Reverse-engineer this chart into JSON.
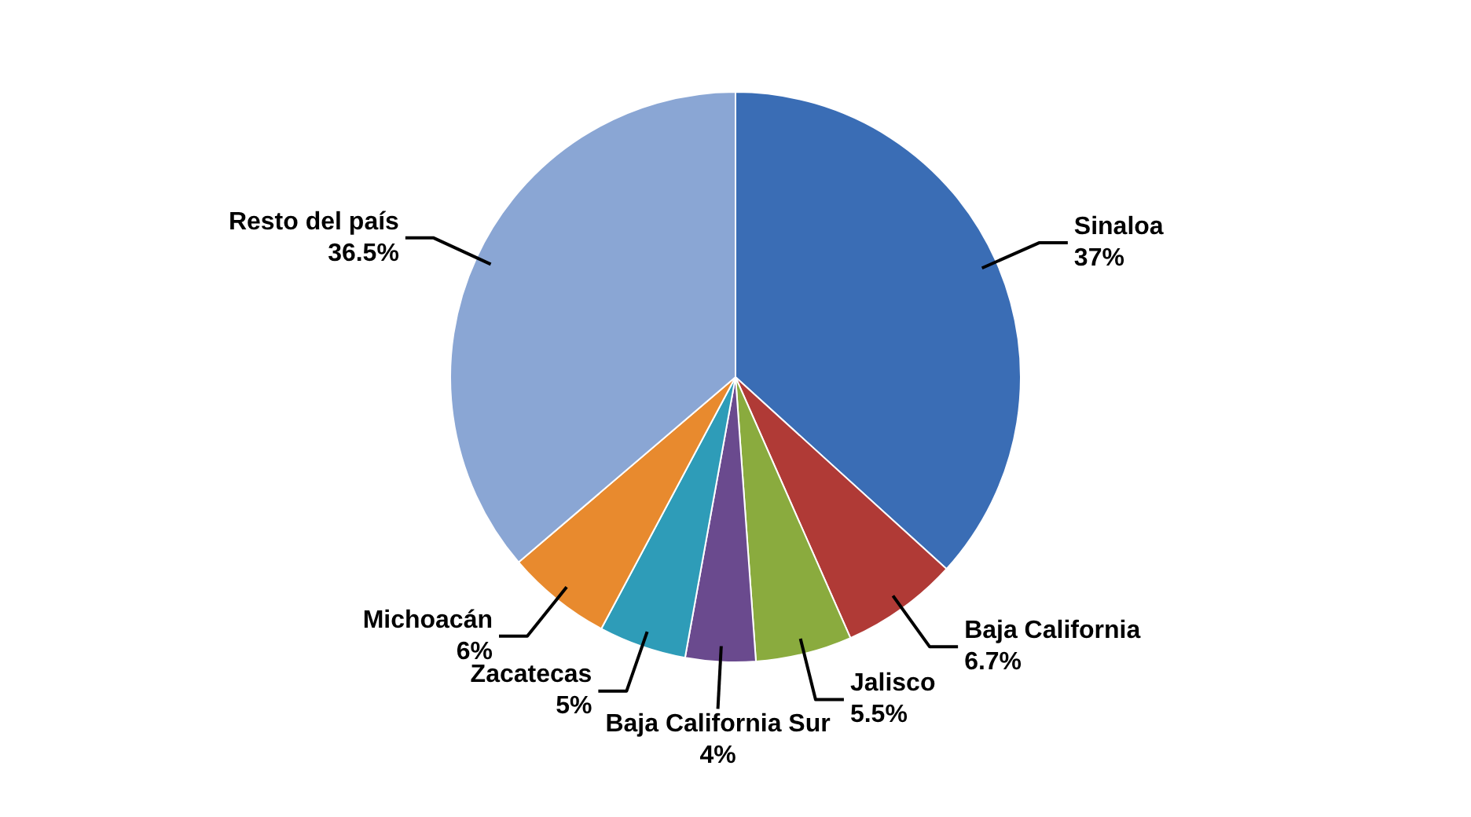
{
  "chart_data": {
    "type": "pie",
    "categories": [
      "Sinaloa",
      "Baja California",
      "Jalisco",
      "Baja California Sur",
      "Zacatecas",
      "Michoacán",
      "Resto del país"
    ],
    "values": [
      37,
      6.7,
      5.5,
      4,
      5,
      6,
      36.5
    ],
    "colors": [
      "#3a6db5",
      "#b03a36",
      "#8aab3e",
      "#6a4a8e",
      "#2e9cb8",
      "#e88a2e",
      "#8aa6d4"
    ],
    "value_labels": [
      "37%",
      "6.7%",
      "5.5%",
      "4%",
      "5%",
      "6%",
      "36.5%"
    ],
    "legend": false
  }
}
